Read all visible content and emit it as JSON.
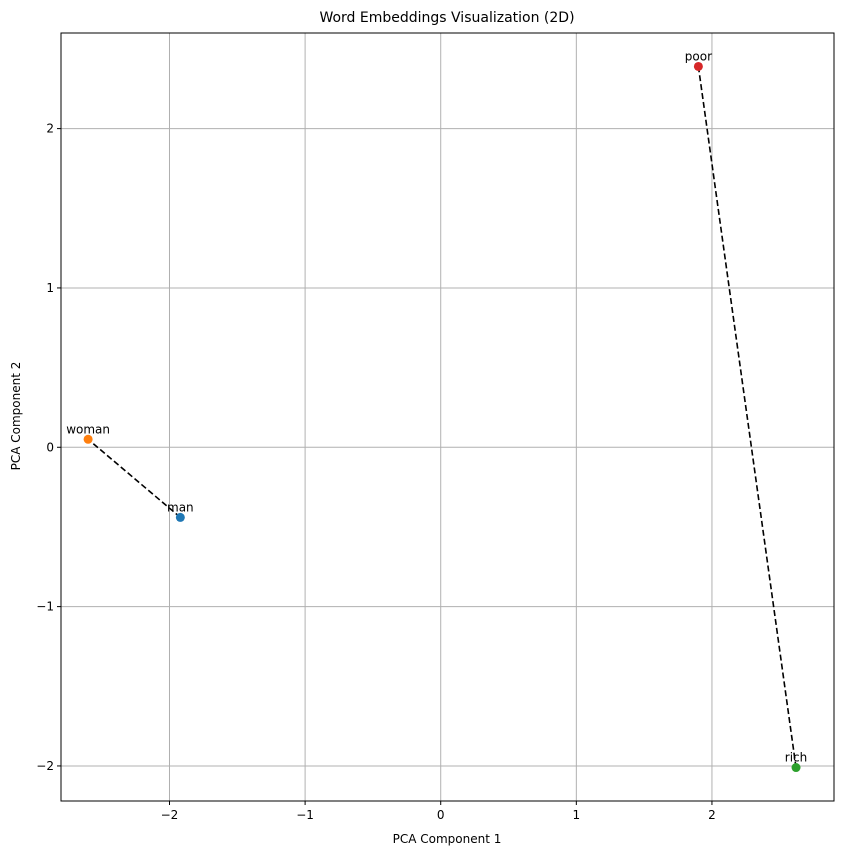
{
  "chart_data": {
    "type": "scatter",
    "title": "Word Embeddings Visualization (2D)",
    "xlabel": "PCA Component 1",
    "ylabel": "PCA Component 2",
    "xlim": [
      -2.8,
      2.9
    ],
    "ylim": [
      -2.22,
      2.6
    ],
    "xticks": [
      -2,
      -1,
      0,
      1,
      2
    ],
    "yticks": [
      -2,
      -1,
      0,
      1,
      2
    ],
    "xtick_labels": [
      "−2",
      "−1",
      "0",
      "1",
      "2"
    ],
    "ytick_labels": [
      "−2",
      "−1",
      "0",
      "1",
      "2"
    ],
    "grid": true,
    "points": [
      {
        "label": "man",
        "x": -1.92,
        "y": -0.44,
        "color": "#1f77b4"
      },
      {
        "label": "woman",
        "x": -2.6,
        "y": 0.05,
        "color": "#ff7f0e"
      },
      {
        "label": "rich",
        "x": 2.62,
        "y": -2.01,
        "color": "#2ca02c"
      },
      {
        "label": "poor",
        "x": 1.9,
        "y": 2.39,
        "color": "#d62728"
      }
    ],
    "lines": [
      {
        "from": "man",
        "to": "woman",
        "style": "dashed",
        "color": "#000000"
      },
      {
        "from": "rich",
        "to": "poor",
        "style": "dashed",
        "color": "#000000"
      }
    ]
  }
}
